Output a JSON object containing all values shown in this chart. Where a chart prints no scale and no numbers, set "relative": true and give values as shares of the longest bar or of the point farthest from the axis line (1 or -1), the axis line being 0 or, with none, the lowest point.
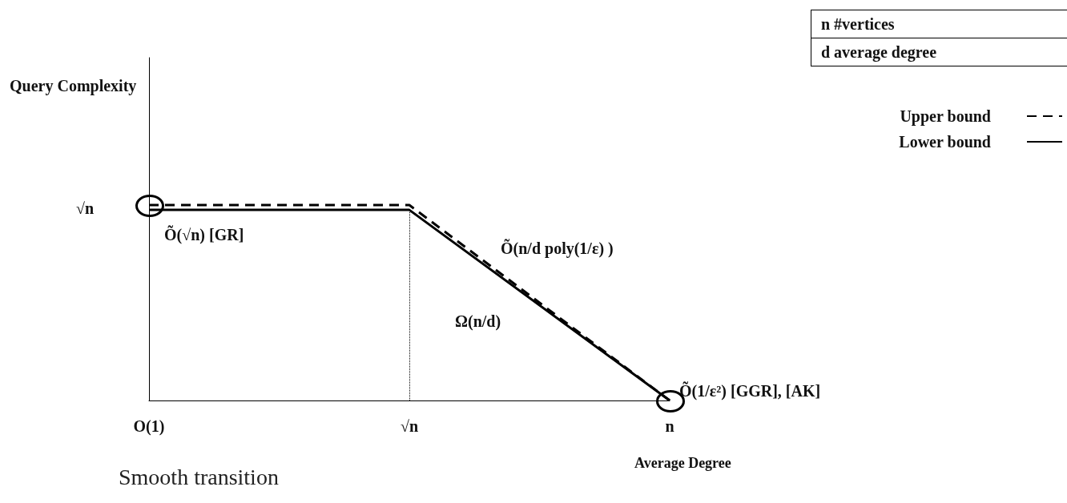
{
  "chart_data": {
    "type": "line",
    "relative": true,
    "xlabel": "Average Degree",
    "categories": [
      "O(1)",
      "√n",
      "n"
    ],
    "series": [
      {
        "name": "Upper bound",
        "color": "#000000",
        "line_style": "dashed",
        "values": [
          1,
          1,
          0
        ]
      },
      {
        "name": "Lower bound",
        "color": "#000000",
        "line_style": "solid",
        "values": [
          0.975,
          0.975,
          0
        ]
      }
    ],
    "legend": "right",
    "grid": false,
    "ref_lines": [
      {
        "axis": "x",
        "value": "√n",
        "line_style": "dotted",
        "color": "#000000"
      }
    ],
    "annotations": [
      "Query Complexity",
      "√n",
      {
        "text": "Õ(√n) [GR]",
        "x": "O(1)",
        "y": 0.975
      },
      "Õ(n/d poly(1/ε) )",
      "Ω(n/d)",
      {
        "text": "Õ(1/ε²) [GGR], [AK]",
        "x": "n",
        "y": 0
      },
      "n #vertices",
      "d average degree",
      "Smooth transition"
    ]
  }
}
